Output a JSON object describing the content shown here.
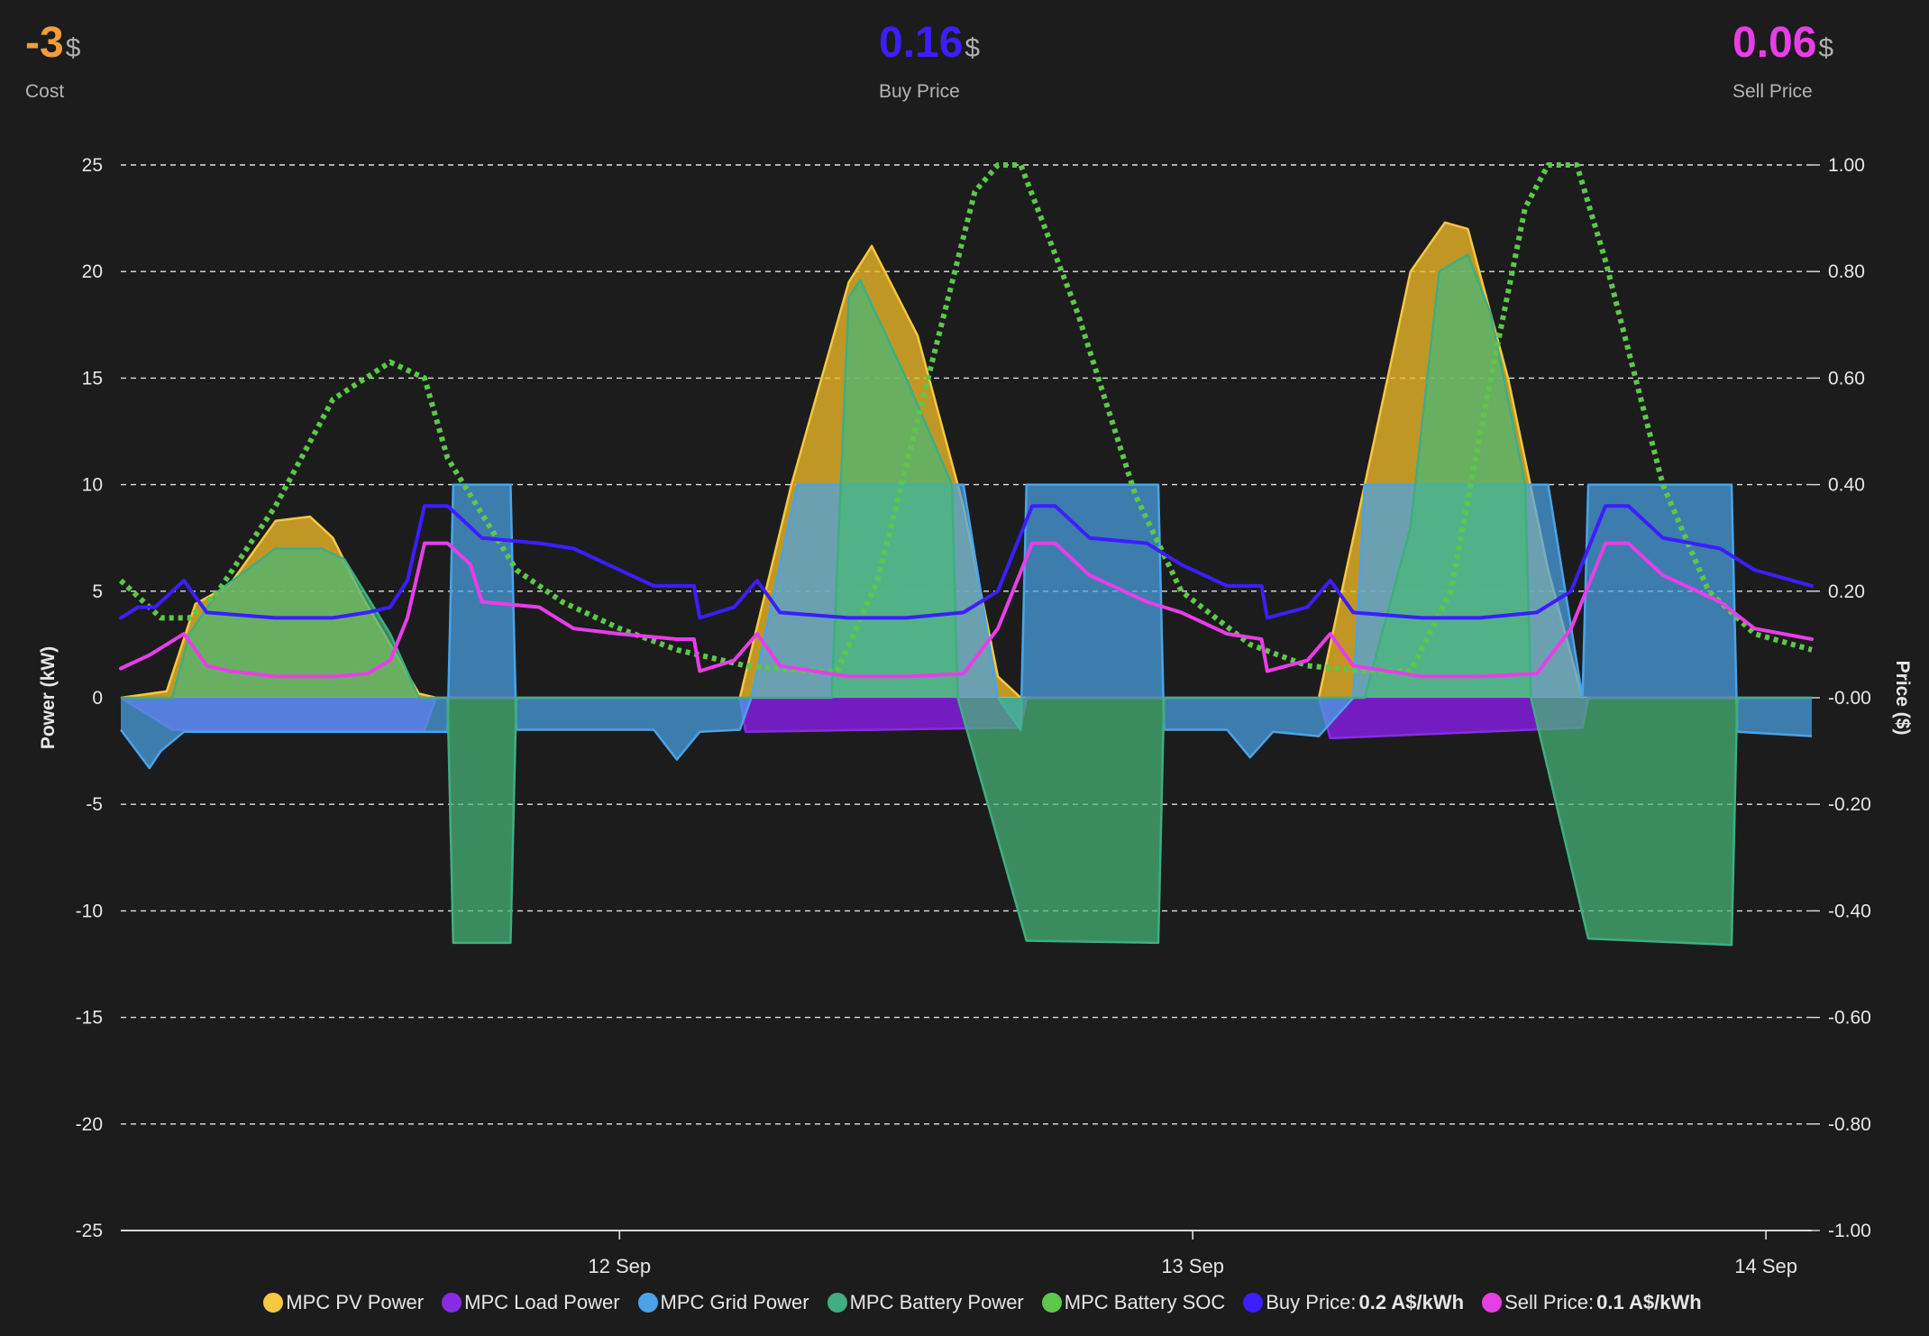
{
  "stats": {
    "cost": {
      "value": "-3",
      "unit": "$",
      "label": "Cost",
      "color": "#f29d38"
    },
    "buy_price": {
      "value": "0.16",
      "unit": "$",
      "label": "Buy Price",
      "color": "#3c1eff"
    },
    "sell_price": {
      "value": "0.06",
      "unit": "$",
      "label": "Sell Price",
      "color": "#e83ee8"
    }
  },
  "legend": [
    {
      "label": "MPC PV Power",
      "value": "",
      "color": "#f5c842"
    },
    {
      "label": "MPC Load Power",
      "value": "",
      "color": "#8a2be2"
    },
    {
      "label": "MPC Grid Power",
      "value": "",
      "color": "#4aa3e8"
    },
    {
      "label": "MPC Battery Power",
      "value": "",
      "color": "#3fae80"
    },
    {
      "label": "MPC Battery SOC",
      "value": "",
      "color": "#5cc84a"
    },
    {
      "label": "Buy Price:",
      "value": "0.2 A$/kWh",
      "color": "#3c1eff"
    },
    {
      "label": "Sell Price:",
      "value": "0.1 A$/kWh",
      "color": "#e83ee8"
    }
  ],
  "chart_data": {
    "type": "area",
    "ylabel_left": "Power (kW)",
    "ylabel_right": "Price ($)",
    "y_left_ticks": [
      "25",
      "20",
      "15",
      "10",
      "5",
      "0",
      "-5",
      "-10",
      "-15",
      "-20",
      "-25"
    ],
    "y_right_ticks": [
      "1.00",
      "0.80",
      "0.60",
      "0.40",
      "0.20",
      "-0.00",
      "-0.20",
      "-0.40",
      "-0.60",
      "-0.80",
      "-1.00"
    ],
    "y_left_range": [
      -25,
      25
    ],
    "y_right_range": [
      -1,
      1
    ],
    "x_range": [
      11.13,
      14.08
    ],
    "x_ticks": [
      {
        "x": 12,
        "label": "12 Sep"
      },
      {
        "x": 13,
        "label": "13 Sep"
      },
      {
        "x": 14,
        "label": "14 Sep"
      }
    ],
    "grid": true,
    "legend_position": "bottom",
    "series": [
      {
        "name": "MPC PV Power",
        "axis": "left",
        "color": "#f5c842",
        "x": [
          11.13,
          11.21,
          11.26,
          11.32,
          11.4,
          11.46,
          11.5,
          11.55,
          11.65,
          11.68,
          12.21,
          12.3,
          12.4,
          12.44,
          12.52,
          12.6,
          12.66,
          12.7,
          13.22,
          13.3,
          13.38,
          13.44,
          13.48,
          13.55,
          13.62,
          13.68,
          14.08
        ],
        "y": [
          0,
          0.3,
          4.4,
          5.3,
          8.3,
          8.5,
          7.5,
          4.8,
          0.2,
          0,
          0,
          10,
          19.5,
          21.2,
          17,
          9,
          1,
          0,
          0,
          10,
          20,
          22.3,
          22,
          15,
          6,
          0,
          0
        ]
      },
      {
        "name": "MPC Load Power",
        "axis": "left",
        "color": "#8a2be2",
        "x": [
          11.13,
          11.22,
          11.66,
          11.68,
          12.21,
          12.22,
          12.7,
          12.71,
          13.22,
          13.24,
          13.68,
          13.69,
          14.08
        ],
        "y": [
          0,
          -1.5,
          -1.5,
          0,
          0,
          -1.6,
          -1.4,
          0,
          0,
          -1.9,
          -1.4,
          0,
          0
        ]
      },
      {
        "name": "MPC Grid Power",
        "axis": "left",
        "color": "#4aa3e8",
        "x": [
          11.13,
          11.18,
          11.2,
          11.24,
          11.7,
          11.71,
          11.81,
          11.82,
          12.06,
          12.1,
          12.14,
          12.21,
          12.23,
          12.31,
          12.6,
          12.66,
          12.7,
          12.71,
          12.94,
          12.95,
          13.06,
          13.1,
          13.14,
          13.22,
          13.28,
          13.3,
          13.62,
          13.68,
          13.69,
          13.94,
          13.95,
          14.08
        ],
        "y": [
          -1.5,
          -3.3,
          -2.5,
          -1.6,
          -1.6,
          10,
          10,
          -1.5,
          -1.5,
          -2.9,
          -1.6,
          -1.5,
          0,
          10,
          10,
          0,
          -1.5,
          10,
          10,
          -1.5,
          -1.5,
          -2.8,
          -1.6,
          -1.8,
          0,
          10,
          10,
          0,
          10,
          10,
          -1.6,
          -1.8
        ]
      },
      {
        "name": "MPC Battery Power",
        "axis": "left",
        "color": "#3fae80",
        "x": [
          11.13,
          11.22,
          11.25,
          11.3,
          11.4,
          11.48,
          11.52,
          11.6,
          11.65,
          11.7,
          11.71,
          11.81,
          11.82,
          12.37,
          12.4,
          12.42,
          12.5,
          12.58,
          12.59,
          12.71,
          12.94,
          12.95,
          13.3,
          13.38,
          13.43,
          13.48,
          13.52,
          13.58,
          13.59,
          13.69,
          13.94,
          13.95,
          14.08
        ],
        "y": [
          0,
          0,
          3,
          5,
          7,
          7,
          6.5,
          3,
          0,
          0,
          -11.5,
          -11.5,
          0,
          0,
          18.8,
          19.6,
          15,
          10,
          0,
          -11.4,
          -11.5,
          0,
          0,
          8,
          20,
          20.8,
          18,
          10,
          0,
          -11.3,
          -11.6,
          0,
          0
        ]
      },
      {
        "name": "MPC Battery SOC",
        "axis": "right",
        "color": "#5cc84a",
        "style": "dotted",
        "x": [
          11.13,
          11.2,
          11.25,
          11.3,
          11.4,
          11.5,
          11.6,
          11.66,
          11.7,
          11.82,
          11.9,
          12.0,
          12.1,
          12.22,
          12.33,
          12.38,
          12.45,
          12.55,
          12.62,
          12.66,
          12.7,
          12.8,
          12.9,
          12.98,
          13.1,
          13.2,
          13.3,
          13.38,
          13.45,
          13.52,
          13.58,
          13.62,
          13.67,
          13.72,
          13.82,
          13.9,
          13.98,
          14.08
        ],
        "y": [
          0.22,
          0.15,
          0.15,
          0.2,
          0.36,
          0.56,
          0.63,
          0.6,
          0.45,
          0.24,
          0.18,
          0.13,
          0.09,
          0.06,
          0.05,
          0.05,
          0.22,
          0.65,
          0.95,
          1.0,
          1.0,
          0.72,
          0.38,
          0.2,
          0.1,
          0.06,
          0.05,
          0.05,
          0.2,
          0.6,
          0.92,
          1.0,
          1.0,
          0.82,
          0.4,
          0.2,
          0.12,
          0.09
        ]
      },
      {
        "name": "Buy Price",
        "axis": "right",
        "color": "#3c1eff",
        "x": [
          11.13,
          11.16,
          11.19,
          11.24,
          11.28,
          11.4,
          11.5,
          11.56,
          11.6,
          11.63,
          11.66,
          11.7,
          11.76,
          11.86,
          11.92,
          12.0,
          12.06,
          12.13,
          12.14,
          12.2,
          12.24,
          12.28,
          12.4,
          12.5,
          12.6,
          12.66,
          12.72,
          12.76,
          12.82,
          12.92,
          12.98,
          13.06,
          13.12,
          13.13,
          13.2,
          13.24,
          13.28,
          13.4,
          13.5,
          13.6,
          13.66,
          13.72,
          13.76,
          13.82,
          13.92,
          13.98,
          14.08
        ],
        "y": [
          0.15,
          0.17,
          0.17,
          0.22,
          0.16,
          0.15,
          0.15,
          0.16,
          0.17,
          0.22,
          0.36,
          0.36,
          0.3,
          0.29,
          0.28,
          0.24,
          0.21,
          0.21,
          0.15,
          0.17,
          0.22,
          0.16,
          0.15,
          0.15,
          0.16,
          0.2,
          0.36,
          0.36,
          0.3,
          0.29,
          0.25,
          0.21,
          0.21,
          0.15,
          0.17,
          0.22,
          0.16,
          0.15,
          0.15,
          0.16,
          0.2,
          0.36,
          0.36,
          0.3,
          0.28,
          0.24,
          0.21
        ]
      },
      {
        "name": "Sell Price",
        "axis": "right",
        "color": "#e83ee8",
        "x": [
          11.13,
          11.18,
          11.24,
          11.28,
          11.32,
          11.4,
          11.5,
          11.56,
          11.6,
          11.63,
          11.66,
          11.7,
          11.74,
          11.76,
          11.86,
          11.92,
          12.0,
          12.1,
          12.13,
          12.14,
          12.2,
          12.24,
          12.28,
          12.4,
          12.5,
          12.6,
          12.66,
          12.72,
          12.76,
          12.82,
          12.92,
          12.98,
          13.06,
          13.12,
          13.13,
          13.2,
          13.24,
          13.28,
          13.4,
          13.5,
          13.6,
          13.66,
          13.72,
          13.76,
          13.82,
          13.92,
          13.98,
          14.08
        ],
        "y": [
          0.055,
          0.08,
          0.12,
          0.06,
          0.05,
          0.04,
          0.04,
          0.045,
          0.07,
          0.15,
          0.29,
          0.29,
          0.25,
          0.18,
          0.17,
          0.13,
          0.12,
          0.11,
          0.11,
          0.05,
          0.07,
          0.12,
          0.06,
          0.04,
          0.04,
          0.045,
          0.13,
          0.29,
          0.29,
          0.23,
          0.18,
          0.16,
          0.12,
          0.11,
          0.05,
          0.07,
          0.12,
          0.06,
          0.04,
          0.04,
          0.045,
          0.13,
          0.29,
          0.29,
          0.23,
          0.18,
          0.13,
          0.11
        ]
      }
    ]
  }
}
